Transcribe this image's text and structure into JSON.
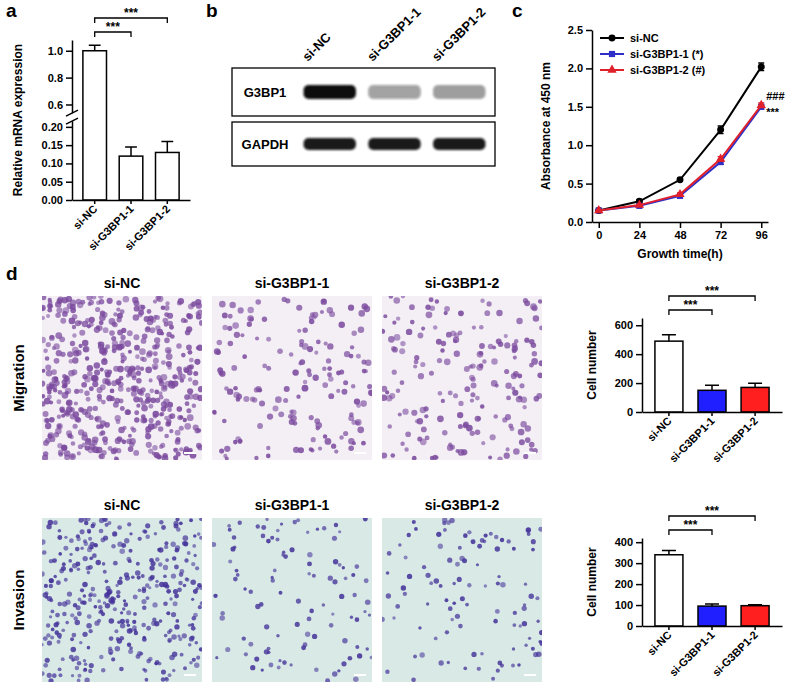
{
  "chart_data": [
    {
      "panel": "a",
      "type": "bar",
      "categories": [
        "si-NC",
        "si-G3BP1-1",
        "si-G3BP1-2"
      ],
      "values": [
        1.0,
        0.12,
        0.13
      ],
      "errors": [
        0.04,
        0.025,
        0.03
      ],
      "color": "#ffffff",
      "y_label": "Relative mRNA expression",
      "ylim": [
        0,
        1.08
      ],
      "y_break": [
        0.21,
        0.55
      ],
      "yticks": [
        {
          "value": 0,
          "label": "0.00"
        },
        0.05,
        {
          "value": 0.1,
          "label": "0.10"
        },
        0.15,
        {
          "value": 0.2,
          "label": "0.20"
        },
        0.6,
        0.8,
        {
          "value": 1,
          "label": "1.0"
        }
      ],
      "comparisons": [
        {
          "between": [
            "si-NC",
            "si-G3BP1-1"
          ],
          "label": "***"
        },
        {
          "between": [
            "si-NC",
            "si-G3BP1-2"
          ],
          "label": "***"
        }
      ]
    },
    {
      "panel": "b",
      "type": "blot",
      "lanes": [
        "si-NC",
        "si-G3BP1-1",
        "si-G3BP1-2"
      ],
      "rows": [
        {
          "name": "G3BP1",
          "intensity": [
            1.0,
            0.4,
            0.38
          ]
        },
        {
          "name": "GAPDH",
          "intensity": [
            0.95,
            0.95,
            0.95
          ]
        }
      ]
    },
    {
      "panel": "c",
      "type": "line",
      "x": [
        0,
        24,
        48,
        72,
        96
      ],
      "xlim": [
        -4,
        100
      ],
      "xticks": [
        0,
        24,
        48,
        72,
        96
      ],
      "ylim": [
        0,
        2.5
      ],
      "yticks": [
        {
          "value": 0,
          "label": "0.0"
        },
        0.5,
        {
          "value": 1,
          "label": "1.0"
        },
        1.5,
        {
          "value": 2,
          "label": "2.0"
        },
        2.5
      ],
      "x_label": "Growth time(h)",
      "y_label": "Absorbance at 450 nm",
      "legend": "upper left",
      "series": [
        {
          "name": "si-NC",
          "color": "#000000",
          "marker": "circle",
          "values": [
            0.15,
            0.27,
            0.55,
            1.2,
            2.02
          ],
          "errors": [
            0.01,
            0.02,
            0.02,
            0.05,
            0.05
          ]
        },
        {
          "name": "si-G3BP1-1 (*)",
          "color": "#2f2fc8",
          "marker": "square",
          "values": [
            0.15,
            0.21,
            0.34,
            0.78,
            1.5
          ],
          "errors": [
            0.01,
            0.01,
            0.02,
            0.03,
            0.03
          ],
          "significance": "***"
        },
        {
          "name": "si-G3BP1-2 (#)",
          "color": "#e0202a",
          "marker": "triangle",
          "values": [
            0.15,
            0.22,
            0.36,
            0.82,
            1.52
          ],
          "errors": [
            0.01,
            0.01,
            0.02,
            0.03,
            0.03
          ],
          "significance": "###"
        }
      ]
    },
    {
      "panel": "d",
      "type": "image_grid",
      "columns": [
        "si-NC",
        "si-G3BP1-1",
        "si-G3BP1-2"
      ],
      "rows": [
        "Migration",
        "Invasion"
      ]
    },
    {
      "type": "bar",
      "categories": [
        "si-NC",
        "si-G3BP1-1",
        "si-G3BP1-2"
      ],
      "values": [
        490,
        150,
        170
      ],
      "errors": [
        45,
        35,
        28
      ],
      "colors": [
        "#ffffff",
        "#1f1fff",
        "#ff1f1f"
      ],
      "y_label": "Cell number",
      "ylim": [
        0,
        650
      ],
      "yticks": [
        0,
        200,
        400,
        600
      ],
      "comparisons": [
        {
          "between": [
            "si-NC",
            "si-G3BP1-1"
          ],
          "label": "***"
        },
        {
          "between": [
            "si-NC",
            "si-G3BP1-2"
          ],
          "label": "***"
        }
      ]
    },
    {
      "type": "bar",
      "categories": [
        "si-NC",
        "si-G3BP1-1",
        "si-G3BP1-2"
      ],
      "values": [
        340,
        95,
        97
      ],
      "errors": [
        20,
        10,
        5
      ],
      "colors": [
        "#ffffff",
        "#1f1fff",
        "#ff1f1f"
      ],
      "y_label": "Cell number",
      "ylim": [
        0,
        420
      ],
      "yticks": [
        0,
        100,
        200,
        300,
        400
      ],
      "comparisons": [
        {
          "between": [
            "si-NC",
            "si-G3BP1-1"
          ],
          "label": "***"
        },
        {
          "between": [
            "si-NC",
            "si-G3BP1-2"
          ],
          "label": "***"
        }
      ]
    }
  ]
}
